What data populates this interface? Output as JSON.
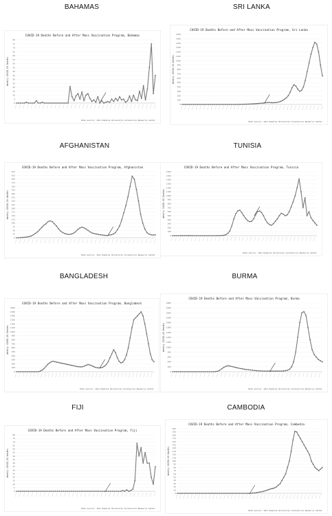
{
  "labels": {
    "bahamas": "BAHAMAS",
    "srilanka": "SRI LANKA",
    "afghanistan": "AFGHANISTAN",
    "tunisia": "TUNISIA",
    "bangladesh": "BANGLADESH",
    "burma": "BURMA",
    "fiji": "FIJI",
    "cambodia": "CAMBODIA"
  },
  "chart_data": [
    {
      "id": "bahamas",
      "type": "line",
      "title": "COVID-19 Deaths Before and After Mass Vaccination Program, Bahamas",
      "ylabel": "Weekly COVID-19 Deaths",
      "source": "Data source: John Hopkins University Coronavirus Resource Center",
      "ylim": [
        0,
        80
      ],
      "yticks": [
        0,
        5,
        10,
        15,
        20,
        25,
        30,
        35,
        40,
        45,
        50,
        55,
        60,
        65,
        70,
        75,
        80
      ],
      "vaccination_marker_index": 43,
      "values": [
        0,
        0,
        0,
        0,
        0,
        1,
        0,
        0,
        0,
        0,
        3,
        0,
        0,
        1,
        0,
        0,
        0,
        0,
        0,
        0,
        0,
        0,
        0,
        0,
        0,
        0,
        0,
        21,
        8,
        3,
        9,
        12,
        5,
        14,
        3,
        10,
        12,
        6,
        2,
        4,
        1,
        8,
        0,
        3,
        0,
        1,
        2,
        1,
        5,
        2,
        6,
        3,
        8,
        4,
        5,
        1,
        3,
        9,
        2,
        10,
        4,
        3,
        15,
        6,
        22,
        4,
        18,
        45,
        75,
        12,
        35
      ]
    },
    {
      "id": "srilanka",
      "type": "line",
      "title": "COVID-19 Deaths Before and After Mass Vaccination Program, Sri Lanka",
      "ylabel": "Weekly COVID-19 Deaths",
      "source": "Data source: John Hopkins University Coronavirus Resource Center",
      "ylim": [
        0,
        1600
      ],
      "yticks": [
        0,
        100,
        200,
        300,
        400,
        500,
        600,
        700,
        800,
        900,
        1000,
        1100,
        1200,
        1300,
        1400,
        1500,
        1600
      ],
      "vaccination_marker_index": 44,
      "values": [
        0,
        0,
        0,
        0,
        0,
        0,
        0,
        0,
        0,
        0,
        0,
        0,
        0,
        0,
        0,
        0,
        0,
        0,
        0,
        0,
        0,
        0,
        0,
        0,
        0,
        0,
        0,
        0,
        0,
        0,
        1,
        2,
        3,
        5,
        6,
        8,
        10,
        12,
        15,
        18,
        22,
        25,
        28,
        32,
        38,
        42,
        45,
        40,
        38,
        42,
        45,
        55,
        70,
        90,
        120,
        150,
        200,
        280,
        380,
        450,
        420,
        350,
        300,
        320,
        400,
        550,
        750,
        950,
        1150,
        1300,
        1420,
        1380,
        1200,
        900,
        650
      ]
    },
    {
      "id": "afghanistan",
      "type": "line",
      "title": "COVID-19 Deaths Before and After Mass Vaccination Program, Afghanistan",
      "ylabel": "Weekly COVID-19 Deaths",
      "source": "Data source: John Hopkins University Coronavirus Resource Center",
      "ylim": [
        0,
        450
      ],
      "yticks": [
        0,
        25,
        50,
        75,
        100,
        125,
        150,
        175,
        200,
        225,
        250,
        275,
        300,
        325,
        350,
        375,
        400,
        425,
        450
      ],
      "vaccination_marker_index": 44,
      "values": [
        0,
        0,
        1,
        2,
        3,
        5,
        8,
        12,
        20,
        30,
        40,
        55,
        70,
        85,
        95,
        110,
        115,
        110,
        95,
        80,
        60,
        45,
        35,
        28,
        25,
        22,
        25,
        30,
        40,
        55,
        65,
        72,
        68,
        60,
        50,
        40,
        32,
        28,
        25,
        22,
        20,
        18,
        16,
        15,
        18,
        20,
        25,
        35,
        55,
        80,
        120,
        170,
        220,
        280,
        350,
        420,
        400,
        330,
        250,
        160,
        100,
        60,
        35,
        25,
        20,
        18,
        20
      ]
    },
    {
      "id": "tunisia",
      "type": "line",
      "title": "COVID-19 Deaths Before and After Mass Vaccination Program, Tunisia",
      "ylabel": "Weekly COVID-19 Deaths",
      "source": "Data source: John Hopkins University Coronavirus Resource Center",
      "ylim": [
        0,
        1600
      ],
      "yticks": [
        0,
        100,
        200,
        300,
        400,
        500,
        600,
        700,
        800,
        900,
        1000,
        1100,
        1200,
        1300,
        1400,
        1500,
        1600
      ],
      "vaccination_marker_index": 42,
      "values": [
        0,
        0,
        0,
        0,
        0,
        1,
        2,
        2,
        1,
        1,
        0,
        0,
        0,
        0,
        0,
        0,
        0,
        0,
        0,
        0,
        0,
        0,
        0,
        1,
        2,
        5,
        10,
        25,
        60,
        120,
        250,
        420,
        550,
        620,
        640,
        580,
        500,
        430,
        380,
        350,
        360,
        420,
        520,
        600,
        620,
        580,
        500,
        400,
        320,
        280,
        260,
        300,
        360,
        420,
        500,
        560,
        540,
        500,
        520,
        600,
        720,
        850,
        1000,
        1200,
        1420,
        1100,
        700,
        950,
        500,
        600,
        450,
        380,
        320,
        260
      ]
    },
    {
      "id": "bangladesh",
      "type": "line",
      "title": "COVID-19 Deaths Before and After Mass Vaccination Program, Bangladesh",
      "ylabel": "Weekly COVID-19 Deaths",
      "source": "Data source: John Hopkins University Coronavirus Resource Center",
      "ylim": [
        0,
        1600
      ],
      "yticks": [
        0,
        100,
        200,
        300,
        400,
        500,
        600,
        700,
        800,
        900,
        1000,
        1100,
        1200,
        1300,
        1400,
        1500,
        1600
      ],
      "vaccination_marker_index": 46,
      "values": [
        0,
        0,
        0,
        0,
        0,
        0,
        0,
        0,
        0,
        0,
        0,
        0,
        2,
        15,
        40,
        80,
        130,
        180,
        220,
        250,
        260,
        250,
        240,
        230,
        220,
        210,
        200,
        190,
        180,
        170,
        160,
        150,
        140,
        130,
        125,
        120,
        125,
        140,
        160,
        180,
        170,
        150,
        130,
        110,
        100,
        95,
        100,
        110,
        140,
        180,
        250,
        350,
        450,
        550,
        480,
        350,
        260,
        220,
        240,
        300,
        420,
        600,
        850,
        1100,
        1300,
        1350,
        1400,
        1450,
        1500,
        1400,
        1200,
        950,
        700,
        450,
        300,
        250
      ]
    },
    {
      "id": "burma",
      "type": "line",
      "title": "COVID-19 Deaths Before and After Mass Vaccination Program, Burma",
      "ylabel": "Weekly COVID-19 Deaths",
      "source": "Data source: John Hopkins University Coronavirus Resource Center",
      "ylim": [
        0,
        2800
      ],
      "yticks": [
        0,
        200,
        400,
        600,
        800,
        1000,
        1200,
        1400,
        1600,
        1800,
        2000,
        2200,
        2400,
        2600,
        2800
      ],
      "vaccination_marker_index": 48,
      "values": [
        0,
        0,
        0,
        0,
        0,
        0,
        0,
        0,
        0,
        0,
        0,
        0,
        0,
        0,
        0,
        0,
        0,
        0,
        0,
        0,
        0,
        5,
        20,
        60,
        120,
        180,
        220,
        240,
        230,
        210,
        190,
        170,
        150,
        130,
        120,
        100,
        90,
        80,
        70,
        60,
        50,
        40,
        35,
        30,
        28,
        25,
        25,
        25,
        25,
        25,
        25,
        25,
        25,
        25,
        30,
        40,
        60,
        100,
        200,
        400,
        800,
        1400,
        2000,
        2400,
        2450,
        2300,
        1800,
        1300,
        900,
        700,
        600,
        500,
        450,
        400
      ]
    },
    {
      "id": "fiji",
      "type": "line",
      "title": "COVID-19 Deaths Before and After Mass Vaccination Program, Fiji",
      "ylabel": "Weekly COVID-19 Deaths",
      "source": "Data source: John Hopkins University Coronavirus Resource Center",
      "ylim": [
        0,
        80
      ],
      "yticks": [
        0,
        5,
        10,
        15,
        20,
        25,
        30,
        35,
        40,
        45,
        50,
        55,
        60,
        65,
        70,
        75,
        80
      ],
      "vaccination_marker_index": 44,
      "values": [
        0,
        0,
        0,
        0,
        0,
        0,
        0,
        0,
        0,
        0,
        0,
        0,
        0,
        0,
        0,
        0,
        0,
        0,
        0,
        0,
        0,
        0,
        0,
        0,
        0,
        0,
        0,
        0,
        0,
        0,
        0,
        0,
        0,
        0,
        0,
        0,
        0,
        0,
        0,
        0,
        0,
        0,
        0,
        0,
        0,
        0,
        0,
        0,
        0,
        0,
        0,
        0,
        1,
        0,
        2,
        0,
        1,
        3,
        15,
        68,
        50,
        62,
        40,
        55,
        40,
        40,
        20,
        10,
        35
      ]
    },
    {
      "id": "cambodia",
      "type": "line",
      "title": "COVID-19 Deaths Before and After Mass Vaccination Program, Cambodia",
      "ylabel": "Weekly COVID-19 Deaths",
      "source": "Data source: John Hopkins University Coronavirus Resource Center",
      "ylim": [
        0,
        200
      ],
      "yticks": [
        0,
        10,
        20,
        30,
        40,
        50,
        60,
        70,
        80,
        90,
        100,
        110,
        120,
        130,
        140,
        150,
        160,
        170,
        180,
        190,
        200
      ],
      "vaccination_marker_index": 40,
      "values": [
        0,
        0,
        0,
        0,
        0,
        0,
        0,
        0,
        0,
        0,
        0,
        0,
        0,
        0,
        0,
        0,
        0,
        0,
        0,
        0,
        0,
        0,
        0,
        0,
        0,
        0,
        0,
        0,
        0,
        0,
        0,
        0,
        0,
        0,
        0,
        0,
        0,
        0,
        0,
        0,
        0,
        1,
        1,
        2,
        3,
        4,
        5,
        6,
        8,
        10,
        12,
        14,
        15,
        17,
        20,
        25,
        30,
        40,
        50,
        60,
        80,
        100,
        130,
        165,
        192,
        190,
        180,
        170,
        160,
        150,
        140,
        130,
        120,
        100,
        90,
        80,
        75,
        70,
        75,
        80
      ]
    }
  ]
}
